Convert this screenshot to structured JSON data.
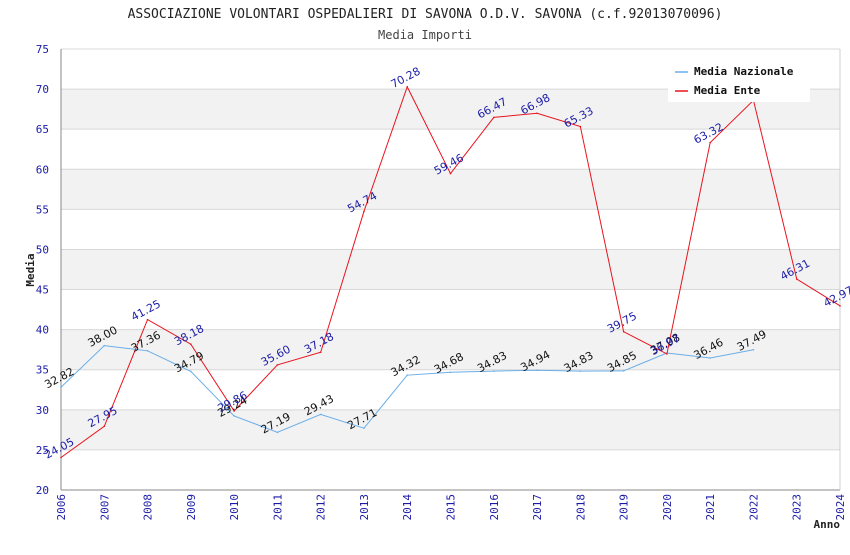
{
  "chart_data": {
    "type": "line",
    "title": "ASSOCIAZIONE VOLONTARI OSPEDALIERI DI SAVONA O.D.V. SAVONA (c.f.92013070096)",
    "subtitle": "Media Importi",
    "xlabel": "Anno",
    "ylabel": "Media",
    "ylim": [
      20,
      75
    ],
    "yticks": [
      20,
      25,
      30,
      35,
      40,
      45,
      50,
      55,
      60,
      65,
      70,
      75
    ],
    "grid": true,
    "legend_position": "top-right",
    "categories": [
      "2006",
      "2007",
      "2008",
      "2009",
      "2010",
      "2011",
      "2012",
      "2013",
      "2014",
      "2015",
      "2016",
      "2017",
      "2018",
      "2019",
      "2020",
      "2021",
      "2022",
      "2023",
      "2024"
    ],
    "series": [
      {
        "name": "Media Nazionale",
        "color": "#6aaee8",
        "values": [
          32.82,
          38.0,
          37.36,
          34.79,
          29.24,
          27.19,
          29.43,
          27.71,
          34.32,
          34.68,
          34.83,
          34.94,
          34.83,
          34.85,
          37.08,
          36.46,
          37.49,
          null,
          null
        ],
        "labels": [
          "32.82",
          "38.00",
          "37.36",
          "34.79",
          "29.24",
          "27.19",
          "29.43",
          "27.71",
          "34.32",
          "34.68",
          "34.83",
          "34.94",
          "34.83",
          "34.85",
          "37.08",
          "36.46",
          "37.49",
          null,
          null
        ]
      },
      {
        "name": "Media Ente",
        "color": "#e8141e",
        "values": [
          24.05,
          27.95,
          41.25,
          38.18,
          29.86,
          35.6,
          37.18,
          54.74,
          70.28,
          59.46,
          66.47,
          66.98,
          65.33,
          39.75,
          36.97,
          63.32,
          68.6,
          46.31,
          42.97
        ],
        "labels": [
          "24.05",
          "27.95",
          "41.25",
          "38.18",
          "29.86",
          "35.60",
          "37.18",
          "54.74",
          "70.28",
          "59.46",
          "66.47",
          "66.98",
          "65.33",
          "39.75",
          "36.97",
          "63.32",
          null,
          "46.31",
          "42.97"
        ]
      }
    ]
  }
}
